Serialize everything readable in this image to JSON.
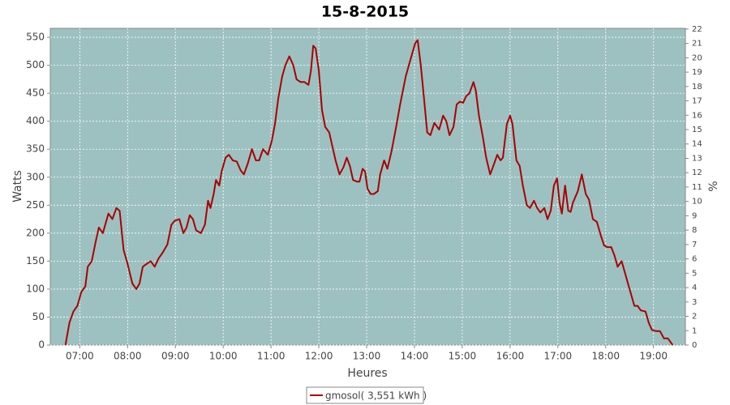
{
  "chart_data": {
    "type": "line",
    "title": "15-8-2015",
    "x_label": "Heures",
    "y_label": "Watts",
    "y2_label": "%",
    "x": [
      "06:42",
      "06:47",
      "06:52",
      "06:57",
      "07:02",
      "07:07",
      "07:10",
      "07:15",
      "07:20",
      "07:24",
      "07:29",
      "07:36",
      "07:41",
      "07:46",
      "07:50",
      "07:55",
      "08:00",
      "08:06",
      "08:11",
      "08:15",
      "08:19",
      "08:24",
      "08:29",
      "08:34",
      "08:39",
      "08:44",
      "08:50",
      "08:55",
      "08:59",
      "09:05",
      "09:10",
      "09:14",
      "09:18",
      "09:22",
      "09:26",
      "09:32",
      "09:37",
      "09:41",
      "09:44",
      "09:48",
      "09:51",
      "09:55",
      "09:58",
      "10:03",
      "10:07",
      "10:12",
      "10:17",
      "10:22",
      "10:26",
      "10:31",
      "10:36",
      "10:41",
      "10:45",
      "10:50",
      "10:56",
      "11:01",
      "11:05",
      "11:09",
      "11:14",
      "11:18",
      "11:23",
      "11:28",
      "11:32",
      "11:37",
      "11:42",
      "11:47",
      "11:50",
      "11:53",
      "11:56",
      "12:00",
      "12:04",
      "12:08",
      "12:13",
      "12:17",
      "12:21",
      "12:26",
      "12:31",
      "12:35",
      "12:39",
      "12:43",
      "12:48",
      "12:51",
      "12:55",
      "12:58",
      "13:01",
      "13:05",
      "13:09",
      "13:14",
      "13:17",
      "13:22",
      "13:26",
      "13:31",
      "13:37",
      "13:42",
      "13:49",
      "13:56",
      "14:01",
      "14:04",
      "14:08",
      "14:12",
      "14:16",
      "14:20",
      "14:25",
      "14:31",
      "14:36",
      "14:40",
      "14:44",
      "14:49",
      "14:53",
      "14:57",
      "15:01",
      "15:05",
      "15:09",
      "15:14",
      "15:17",
      "15:21",
      "15:26",
      "15:30",
      "15:35",
      "15:39",
      "15:44",
      "15:48",
      "15:51",
      "15:56",
      "16:00",
      "16:03",
      "16:08",
      "16:12",
      "16:16",
      "16:21",
      "16:25",
      "16:30",
      "16:34",
      "16:38",
      "16:43",
      "16:47",
      "16:51",
      "16:55",
      "16:59",
      "17:02",
      "17:05",
      "17:09",
      "17:13",
      "17:16",
      "17:19",
      "17:25",
      "17:30",
      "17:35",
      "17:39",
      "17:44",
      "17:49",
      "17:54",
      "17:58",
      "18:02",
      "18:07",
      "18:11",
      "18:15",
      "18:20",
      "18:24",
      "18:29",
      "18:33",
      "18:36",
      "18:40",
      "18:44",
      "18:50",
      "18:54",
      "18:58",
      "19:03",
      "19:08",
      "19:13",
      "19:18",
      "19:24"
    ],
    "series": [
      {
        "name": "gmosol( 3,551 kWh )",
        "color": "#aa0000",
        "values": [
          0,
          40,
          60,
          70,
          95,
          105,
          140,
          150,
          185,
          210,
          200,
          235,
          225,
          245,
          240,
          170,
          145,
          110,
          100,
          110,
          140,
          145,
          150,
          140,
          155,
          165,
          180,
          215,
          222,
          225,
          200,
          210,
          232,
          225,
          205,
          200,
          215,
          258,
          245,
          270,
          295,
          285,
          310,
          335,
          340,
          330,
          328,
          312,
          305,
          325,
          350,
          330,
          330,
          350,
          340,
          365,
          395,
          440,
          480,
          500,
          516,
          500,
          475,
          470,
          470,
          465,
          490,
          535,
          530,
          490,
          420,
          390,
          380,
          355,
          330,
          305,
          318,
          335,
          320,
          295,
          292,
          292,
          315,
          310,
          280,
          270,
          270,
          275,
          305,
          330,
          315,
          345,
          390,
          430,
          480,
          515,
          540,
          545,
          500,
          440,
          380,
          375,
          397,
          385,
          410,
          400,
          375,
          390,
          430,
          435,
          433,
          445,
          450,
          470,
          455,
          410,
          370,
          335,
          305,
          320,
          340,
          330,
          335,
          395,
          410,
          395,
          330,
          320,
          285,
          250,
          245,
          258,
          245,
          237,
          245,
          225,
          240,
          285,
          298,
          255,
          235,
          285,
          240,
          238,
          255,
          275,
          305,
          270,
          260,
          225,
          220,
          195,
          178,
          175,
          175,
          160,
          140,
          150,
          130,
          105,
          85,
          70,
          70,
          62,
          60,
          40,
          27,
          25,
          25,
          12,
          12,
          0
        ]
      }
    ],
    "xlim": [
      "06:23",
      "19:40"
    ],
    "xticks": [
      "07:00",
      "08:00",
      "09:00",
      "10:00",
      "11:00",
      "12:00",
      "13:00",
      "14:00",
      "15:00",
      "16:00",
      "17:00",
      "18:00",
      "19:00"
    ],
    "ylim": [
      0,
      566
    ],
    "yticks": [
      0,
      50,
      100,
      150,
      200,
      250,
      300,
      350,
      400,
      450,
      500,
      550
    ],
    "y2lim": [
      0,
      22.05
    ],
    "y2ticks": [
      0,
      1,
      2,
      3,
      4,
      5,
      6,
      7,
      8,
      9,
      10,
      11,
      12,
      13,
      14,
      15,
      16,
      17,
      18,
      19,
      20,
      21,
      22
    ],
    "grid": true,
    "background": "#9dc1c1",
    "legend": "bottom"
  }
}
